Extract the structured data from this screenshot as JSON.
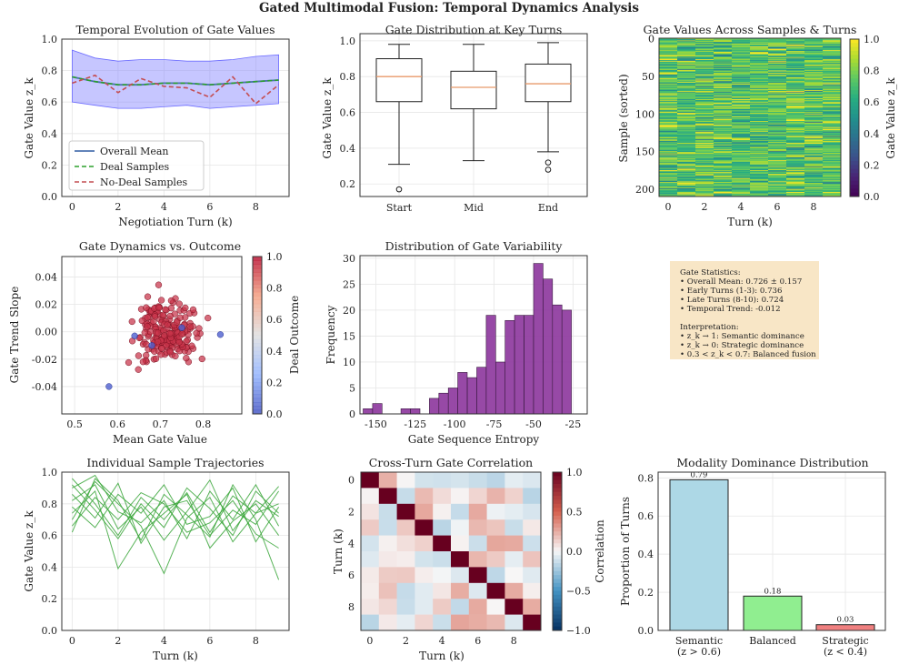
{
  "figure": {
    "suptitle": "Gated Multimodal Fusion: Temporal Dynamics Analysis"
  },
  "colors": {
    "overall_mean": "#4c72b0",
    "deal": "#2ca02c",
    "nodeal": "#c44e52",
    "band": "#8080ff",
    "box_median": "#e89a6a",
    "scatter": "#c8334a",
    "violin": "#8e3a9e",
    "trajectory": "#3aa63a",
    "bar_semantic": "#add8e6",
    "bar_balanced": "#90ee90",
    "bar_strategic": "#f08080",
    "stats_bg": "#f5deb3"
  },
  "panels": {
    "temporal": {
      "title": "Temporal Evolution of Gate Values",
      "xlabel": "Negotiation Turn (k)",
      "ylabel": "Gate Value z_k",
      "legend": [
        "Overall Mean",
        "Deal Samples",
        "No-Deal Samples"
      ]
    },
    "boxplot": {
      "title": "Gate Distribution at Key Turns",
      "ylabel": "Gate Value z_k"
    },
    "heatmap": {
      "title": "Gate Values Across Samples & Turns",
      "xlabel": "Turn (k)",
      "ylabel": "Sample (sorted)",
      "colorbar_label": "Gate Value z_k"
    },
    "scatter": {
      "title": "Gate Dynamics vs. Outcome",
      "xlabel": "Mean Gate Value",
      "ylabel": "Gate Trend Slope",
      "colorbar_label": "Deal Outcome"
    },
    "hist": {
      "title": "Distribution of Gate Variability",
      "xlabel": "Gate Sequence Entropy",
      "ylabel": "Frequency"
    },
    "stats": {
      "lines": [
        "Gate Statistics:",
        "• Overall Mean: 0.726 ± 0.157",
        "• Early Turns (1-3): 0.736",
        "• Late Turns (8-10): 0.724",
        "• Temporal Trend: -0.012",
        "",
        "Interpretation:",
        "• z_k → 1: Semantic dominance",
        "• z_k → 0: Strategic dominance",
        "• 0.3 < z_k < 0.7: Balanced fusion"
      ]
    },
    "trajectories": {
      "title": "Individual Sample Trajectories",
      "xlabel": "Turn (k)",
      "ylabel": "Gate Value z_k"
    },
    "corr": {
      "title": "Cross-Turn Gate Correlation",
      "xlabel": "Turn (k)",
      "ylabel": "Turn (k)",
      "colorbar_label": "Correlation"
    },
    "dominance": {
      "title": "Modality Dominance Distribution",
      "ylabel": "Proportion of Turns"
    }
  },
  "chart_data": [
    {
      "id": "temporal",
      "type": "line",
      "x": [
        0,
        1,
        2,
        3,
        4,
        5,
        6,
        7,
        8,
        9
      ],
      "series": [
        {
          "name": "Overall Mean",
          "values": [
            0.76,
            0.73,
            0.71,
            0.71,
            0.72,
            0.72,
            0.71,
            0.72,
            0.73,
            0.74
          ]
        },
        {
          "name": "Deal Samples",
          "values": [
            0.76,
            0.73,
            0.71,
            0.71,
            0.72,
            0.72,
            0.71,
            0.72,
            0.73,
            0.74
          ]
        },
        {
          "name": "No-Deal Samples",
          "values": [
            0.72,
            0.77,
            0.66,
            0.75,
            0.7,
            0.69,
            0.63,
            0.76,
            0.59,
            0.71
          ]
        }
      ],
      "band_upper": [
        0.93,
        0.88,
        0.86,
        0.87,
        0.87,
        0.86,
        0.86,
        0.87,
        0.89,
        0.9
      ],
      "band_lower": [
        0.6,
        0.58,
        0.56,
        0.56,
        0.57,
        0.58,
        0.56,
        0.57,
        0.58,
        0.59
      ],
      "xlim": [
        -0.45,
        9.45
      ],
      "ylim": [
        0,
        1.0
      ],
      "xticks": [
        0,
        2,
        4,
        6,
        8
      ],
      "yticks": [
        0,
        0.2,
        0.4,
        0.6,
        0.8,
        1.0
      ],
      "grid": true,
      "legend_position": "lower-left"
    },
    {
      "id": "boxplot",
      "type": "box",
      "categories": [
        "Start",
        "Mid",
        "End"
      ],
      "boxes": [
        {
          "whislo": 0.31,
          "q1": 0.66,
          "med": 0.8,
          "q3": 0.9,
          "whishi": 0.98,
          "fliers": [
            0.17
          ]
        },
        {
          "whislo": 0.33,
          "q1": 0.62,
          "med": 0.74,
          "q3": 0.83,
          "whishi": 0.98,
          "fliers": []
        },
        {
          "whislo": 0.38,
          "q1": 0.66,
          "med": 0.76,
          "q3": 0.87,
          "whishi": 0.99,
          "fliers": [
            0.28,
            0.32
          ]
        }
      ],
      "ylim": [
        0.13,
        1.04
      ],
      "yticks": [
        0.2,
        0.4,
        0.6,
        0.8,
        1.0
      ],
      "grid": true
    },
    {
      "id": "heatmap",
      "type": "heatmap",
      "rows": 210,
      "cols": 10,
      "colormap": "viridis",
      "vmin": 0,
      "vmax": 1,
      "xticks": [
        0,
        2,
        4,
        6,
        8
      ],
      "yticks": [
        0,
        50,
        100,
        150,
        200
      ],
      "colorbar_ticks": [
        0,
        0.2,
        0.4,
        0.6,
        0.8,
        1.0
      ]
    },
    {
      "id": "scatter",
      "type": "scatter",
      "xlim": [
        0.47,
        0.89
      ],
      "ylim": [
        -0.06,
        0.055
      ],
      "xticks": [
        0.5,
        0.6,
        0.7,
        0.8
      ],
      "yticks": [
        -0.04,
        -0.02,
        0.0,
        0.02,
        0.04
      ],
      "colorbar_ticks": [
        0,
        0.2,
        0.4,
        0.6,
        0.8,
        1.0
      ],
      "colormap": "coolwarm",
      "no_deal_points": [
        [
          0.58,
          -0.04
        ],
        [
          0.64,
          -0.003
        ],
        [
          0.68,
          -0.01
        ],
        [
          0.75,
          0.003
        ],
        [
          0.84,
          -0.002
        ]
      ],
      "grid": true
    },
    {
      "id": "hist",
      "type": "bar",
      "bin_edges": [
        -158,
        -152,
        -146,
        -140,
        -134,
        -128,
        -122,
        -116,
        -110,
        -104,
        -98,
        -92,
        -86,
        -80,
        -74,
        -68,
        -62,
        -56,
        -50,
        -44,
        -38,
        -32,
        -26,
        -20
      ],
      "counts": [
        1,
        2,
        0,
        0,
        1,
        1,
        0,
        3,
        4,
        5,
        8,
        7,
        9,
        19,
        10,
        18,
        19,
        19,
        29,
        26,
        21,
        20,
        0
      ],
      "xlim": [
        -160,
        -16
      ],
      "ylim": [
        0,
        30.5
      ],
      "xticks": [
        -150,
        -125,
        -100,
        -75,
        -50,
        -25
      ],
      "yticks": [
        0,
        5,
        10,
        15,
        20,
        25,
        30
      ],
      "grid": true
    },
    {
      "id": "trajectories",
      "type": "line",
      "x": [
        0,
        1,
        2,
        3,
        4,
        5,
        6,
        7,
        8,
        9
      ],
      "series": [
        {
          "values": [
            0.96,
            0.8,
            0.6,
            0.84,
            0.7,
            0.87,
            0.62,
            0.85,
            0.74,
            0.8
          ]
        },
        {
          "values": [
            0.9,
            0.98,
            0.75,
            0.68,
            0.82,
            0.58,
            0.88,
            0.7,
            0.92,
            0.66
          ]
        },
        {
          "values": [
            0.86,
            0.71,
            0.93,
            0.55,
            0.78,
            0.82,
            0.6,
            0.76,
            0.67,
            0.88
          ]
        },
        {
          "values": [
            0.82,
            0.92,
            0.64,
            0.78,
            0.57,
            0.75,
            0.95,
            0.63,
            0.82,
            0.72
          ]
        },
        {
          "values": [
            0.78,
            0.65,
            0.86,
            0.74,
            0.92,
            0.67,
            0.72,
            0.9,
            0.56,
            0.78
          ]
        },
        {
          "values": [
            0.74,
            0.88,
            0.39,
            0.62,
            0.74,
            0.86,
            0.52,
            0.69,
            0.8,
            0.6
          ]
        },
        {
          "values": [
            0.7,
            0.94,
            0.8,
            0.66,
            0.36,
            0.71,
            0.84,
            0.56,
            0.74,
            0.91
          ]
        },
        {
          "values": [
            0.66,
            0.84,
            0.7,
            0.87,
            0.8,
            0.62,
            0.68,
            0.82,
            0.61,
            0.52
          ]
        },
        {
          "values": [
            0.92,
            0.76,
            0.58,
            0.8,
            0.65,
            0.9,
            0.77,
            0.6,
            0.88,
            0.74
          ]
        },
        {
          "values": [
            0.62,
            0.96,
            0.82,
            0.57,
            0.86,
            0.73,
            0.59,
            0.92,
            0.7,
            0.32
          ]
        }
      ],
      "xlim": [
        -0.45,
        9.45
      ],
      "ylim": [
        0,
        1.0
      ],
      "xticks": [
        0,
        2,
        4,
        6,
        8
      ],
      "yticks": [
        0,
        0.2,
        0.4,
        0.6,
        0.8,
        1.0
      ],
      "grid": true
    },
    {
      "id": "corr",
      "type": "heatmap",
      "size": 10,
      "colormap": "RdBu_r",
      "vmin": -1,
      "vmax": 1,
      "xticks": [
        0,
        2,
        4,
        6,
        8
      ],
      "yticks": [
        0,
        2,
        4,
        6,
        8
      ],
      "colorbar_ticks": [
        -1.0,
        -0.5,
        0.0,
        0.5,
        1.0
      ]
    },
    {
      "id": "dominance",
      "type": "bar",
      "categories": [
        "Semantic|(z > 0.6)",
        "Balanced",
        "Strategic|(z < 0.4)"
      ],
      "values": [
        0.79,
        0.18,
        0.03
      ],
      "value_labels": [
        "0.79",
        "0.18",
        "0.03"
      ],
      "ylim": [
        0,
        0.83
      ],
      "yticks": [
        0.0,
        0.2,
        0.4,
        0.6,
        0.8
      ],
      "grid": true
    }
  ]
}
